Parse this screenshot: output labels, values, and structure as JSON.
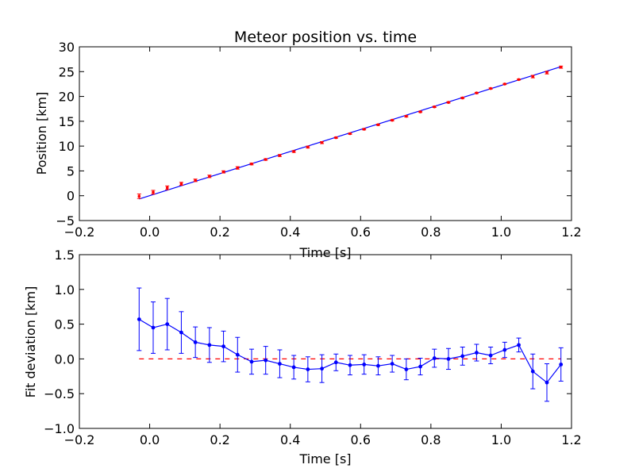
{
  "chart_data": [
    {
      "type": "scatter",
      "title": "Meteor position vs. time",
      "xlabel": "Time [s]",
      "ylabel": "Position [km]",
      "xlim": [
        -0.2,
        1.2
      ],
      "ylim": [
        -5,
        30
      ],
      "xticks": [
        "−0.2",
        "0.0",
        "0.2",
        "0.4",
        "0.6",
        "0.8",
        "1.0",
        "1.2"
      ],
      "yticks": [
        "−5",
        "0",
        "5",
        "10",
        "15",
        "20",
        "25",
        "30"
      ],
      "grid": false,
      "point_color": "#ff0000",
      "fit_color": "#0000ff",
      "series": [
        {
          "x": [
            -0.03,
            0.01,
            0.05,
            0.09,
            0.13,
            0.17,
            0.21,
            0.25,
            0.29,
            0.33,
            0.37,
            0.41,
            0.45,
            0.49,
            0.53,
            0.57,
            0.61,
            0.65,
            0.69,
            0.73,
            0.77,
            0.81,
            0.85,
            0.89,
            0.93,
            0.97,
            1.01,
            1.05,
            1.09,
            1.13,
            1.17
          ],
          "y": [
            -0.1,
            0.7,
            1.6,
            2.4,
            3.1,
            3.9,
            4.8,
            5.6,
            6.4,
            7.3,
            8.1,
            8.9,
            9.8,
            10.7,
            11.7,
            12.5,
            13.4,
            14.3,
            15.2,
            16.0,
            16.9,
            17.9,
            18.8,
            19.7,
            20.7,
            21.6,
            22.5,
            23.4,
            24.0,
            24.8,
            25.9
          ],
          "yerr": [
            0.45,
            0.38,
            0.37,
            0.3,
            0.25,
            0.25,
            0.22,
            0.25,
            0.18,
            0.17,
            0.2,
            0.18,
            0.2,
            0.2,
            0.12,
            0.13,
            0.14,
            0.12,
            0.12,
            0.15,
            0.12,
            0.13,
            0.13,
            0.13,
            0.12,
            0.12,
            0.11,
            0.1,
            0.25,
            0.27,
            0.22
          ]
        }
      ],
      "fit": {
        "x": [
          -0.03,
          1.17
        ],
        "y": [
          -0.65,
          26.0
        ]
      }
    },
    {
      "type": "line",
      "title": "",
      "xlabel": "Time [s]",
      "ylabel": "Fit deviation [km]",
      "xlim": [
        -0.2,
        1.2
      ],
      "ylim": [
        -1.0,
        1.5
      ],
      "xticks": [
        "−0.2",
        "0.0",
        "0.2",
        "0.4",
        "0.6",
        "0.8",
        "1.0",
        "1.2"
      ],
      "yticks": [
        "−1.0",
        "−0.5",
        "0.0",
        "0.5",
        "1.0",
        "1.5"
      ],
      "grid": false,
      "line_color": "#0000ff",
      "zero_line_color": "#ff0000",
      "zero_line": {
        "x": [
          -0.03,
          1.17
        ],
        "y": 0
      },
      "series": [
        {
          "x": [
            -0.03,
            0.01,
            0.05,
            0.09,
            0.13,
            0.17,
            0.21,
            0.25,
            0.29,
            0.33,
            0.37,
            0.41,
            0.45,
            0.49,
            0.53,
            0.57,
            0.61,
            0.65,
            0.69,
            0.73,
            0.77,
            0.81,
            0.85,
            0.89,
            0.93,
            0.97,
            1.01,
            1.05,
            1.09,
            1.13,
            1.17
          ],
          "y": [
            0.57,
            0.45,
            0.5,
            0.38,
            0.24,
            0.2,
            0.18,
            0.06,
            -0.04,
            -0.02,
            -0.07,
            -0.12,
            -0.15,
            -0.14,
            -0.05,
            -0.09,
            -0.08,
            -0.1,
            -0.07,
            -0.15,
            -0.11,
            0.01,
            0.0,
            0.04,
            0.09,
            0.05,
            0.13,
            0.2,
            -0.18,
            -0.34,
            -0.08
          ],
          "yerr": [
            0.45,
            0.37,
            0.37,
            0.3,
            0.22,
            0.25,
            0.22,
            0.25,
            0.18,
            0.2,
            0.2,
            0.17,
            0.18,
            0.2,
            0.12,
            0.14,
            0.14,
            0.13,
            0.12,
            0.15,
            0.12,
            0.13,
            0.15,
            0.13,
            0.12,
            0.12,
            0.11,
            0.1,
            0.25,
            0.27,
            0.24
          ]
        }
      ]
    }
  ]
}
